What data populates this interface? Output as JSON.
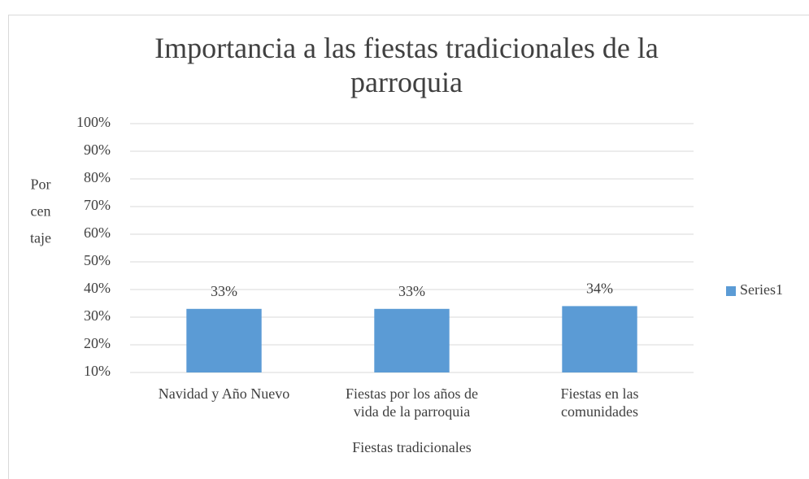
{
  "chart_data": {
    "type": "bar",
    "title": "Importancia a las fiestas tradicionales de la\nparroquia",
    "x_label": "Fiestas tradicionales",
    "y_label": "Por\ncen\ntaje",
    "categories": [
      "Navidad y Año Nuevo",
      "Fiestas por los años de\nvida de la parroquia",
      "Fiestas en las\ncomunidades"
    ],
    "series": [
      {
        "name": "Series1",
        "color": "#5b9bd5",
        "values": [
          33,
          33,
          34
        ],
        "value_labels": [
          "33%",
          "33%",
          "34%"
        ]
      }
    ],
    "ylim": [
      10,
      100
    ],
    "yticks": [
      {
        "value": 10,
        "label": "10%"
      },
      {
        "value": 20,
        "label": "20%"
      },
      {
        "value": 30,
        "label": "30%"
      },
      {
        "value": 40,
        "label": "40%"
      },
      {
        "value": 50,
        "label": "50%"
      },
      {
        "value": 60,
        "label": "60%"
      },
      {
        "value": 70,
        "label": "70%"
      },
      {
        "value": 80,
        "label": "80%"
      },
      {
        "value": 90,
        "label": "90%"
      },
      {
        "value": 100,
        "label": "100%"
      }
    ],
    "grid": true,
    "legend": "right"
  }
}
